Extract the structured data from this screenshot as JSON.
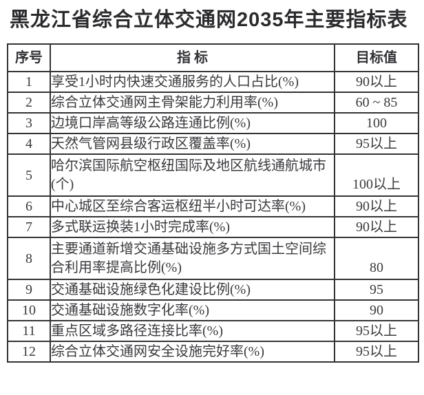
{
  "page": {
    "title": "黑龙江省综合立体交通网2035年主要指标表"
  },
  "table": {
    "headers": {
      "no": "序号",
      "indicator": "指  标",
      "target": "目标值"
    },
    "rows": [
      {
        "no": "1",
        "indicator": "享受1小时内快速交通服务的人口占比(%)",
        "target": "90以上"
      },
      {
        "no": "2",
        "indicator": "综合立体交通网主骨架能力利用率(%)",
        "target": "60 ~ 85"
      },
      {
        "no": "3",
        "indicator": "边境口岸高等级公路连通比例(%)",
        "target": "100"
      },
      {
        "no": "4",
        "indicator": "天然气管网县级行政区覆盖率(%)",
        "target": "95以上"
      },
      {
        "no": "5",
        "indicator": "哈尔滨国际航空枢纽国际及地区航线通航城市(个)",
        "target": "100以上"
      },
      {
        "no": "6",
        "indicator": "中心城区至综合客运枢纽半小时可达率(%)",
        "target": "90以上"
      },
      {
        "no": "7",
        "indicator": "多式联运换装1小时完成率(%)",
        "target": "90以上"
      },
      {
        "no": "8",
        "indicator": "主要通道新增交通基础设施多方式国土空间综合利用率提高比例(%)",
        "target": "80"
      },
      {
        "no": "9",
        "indicator": "交通基础设施绿色化建设比例(%)",
        "target": "95"
      },
      {
        "no": "10",
        "indicator": "交通基础设施数字化率(%)",
        "target": "90"
      },
      {
        "no": "11",
        "indicator": "重点区域多路径连接比率(%)",
        "target": "95以上"
      },
      {
        "no": "12",
        "indicator": "综合立体交通网安全设施完好率(%)",
        "target": "95以上"
      }
    ]
  },
  "colors": {
    "text": "#3a3a3e",
    "border": "#333336",
    "background": "#ffffff"
  }
}
